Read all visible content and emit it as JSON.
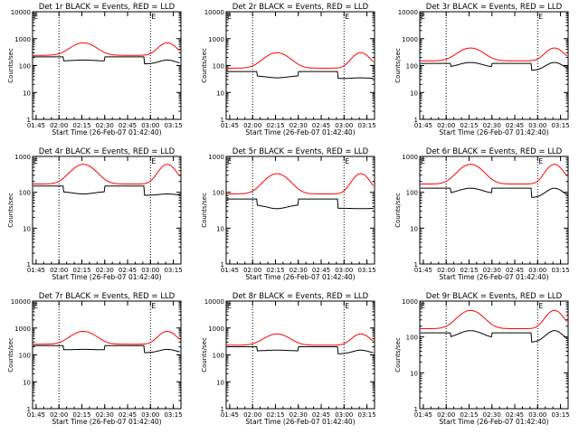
{
  "colors": {
    "background": "#ffffff",
    "events": "#000000",
    "lld": "#ff0000",
    "axis": "#000000"
  },
  "chart_data": [
    {
      "type": "line",
      "title": "Det 1r BLACK = Events, RED = LLD",
      "xlabel": "Start Time (26-Feb-07 01:42:40)",
      "ylabel": "Counts/sec",
      "x_ticks": [
        "01:45",
        "02:00",
        "02:15",
        "02:30",
        "02:45",
        "03:00",
        "03:15"
      ],
      "y_ticks": [
        "1",
        "10",
        "100",
        "1000",
        "10000"
      ],
      "ylim": [
        1,
        10000
      ],
      "xlim_minutes": [
        102.67,
        200
      ],
      "gridlines_minutes": [
        120,
        180
      ],
      "marker": "E",
      "series": [
        {
          "name": "Events",
          "color": "#000000",
          "base": 210,
          "peak": 160
        },
        {
          "name": "LLD",
          "color": "#ff0000",
          "base": 240,
          "peak": 700
        }
      ]
    },
    {
      "type": "line",
      "title": "Det 2r BLACK = Events, RED = LLD",
      "xlabel": "Start Time (26-Feb-07 01:42:40)",
      "ylabel": "Counts/sec",
      "x_ticks": [
        "01:45",
        "02:00",
        "02:15",
        "02:30",
        "02:45",
        "03:00",
        "03:15"
      ],
      "y_ticks": [
        "1",
        "10",
        "100",
        "1000",
        "10000"
      ],
      "ylim": [
        1,
        10000
      ],
      "xlim_minutes": [
        102.67,
        200
      ],
      "gridlines_minutes": [
        120,
        180
      ],
      "marker": "E",
      "series": [
        {
          "name": "Events",
          "color": "#000000",
          "base": 60,
          "peak": 35
        },
        {
          "name": "LLD",
          "color": "#ff0000",
          "base": 80,
          "peak": 300
        }
      ]
    },
    {
      "type": "line",
      "title": "Det 3r BLACK = Events, RED = LLD",
      "xlabel": "Start Time (26-Feb-07 01:42:40)",
      "ylabel": "Counts/sec",
      "x_ticks": [
        "01:45",
        "02:00",
        "02:15",
        "02:30",
        "02:45",
        "03:00",
        "03:15"
      ],
      "y_ticks": [
        "1",
        "10",
        "100",
        "1000",
        "10000"
      ],
      "ylim": [
        1,
        10000
      ],
      "xlim_minutes": [
        102.67,
        200
      ],
      "gridlines_minutes": [
        120,
        180
      ],
      "marker": "E",
      "series": [
        {
          "name": "Events",
          "color": "#000000",
          "base": 120,
          "peak": 130
        },
        {
          "name": "LLD",
          "color": "#ff0000",
          "base": 150,
          "peak": 450
        }
      ]
    },
    {
      "type": "line",
      "title": "Det 4r BLACK = Events, RED = LLD",
      "xlabel": "Start Time (26-Feb-07 01:42:40)",
      "ylabel": "Counts/sec",
      "x_ticks": [
        "01:45",
        "02:00",
        "02:15",
        "02:30",
        "02:45",
        "03:00",
        "03:15"
      ],
      "y_ticks": [
        "1",
        "10",
        "100",
        "1000"
      ],
      "ylim": [
        1,
        1000
      ],
      "xlim_minutes": [
        102.67,
        200
      ],
      "gridlines_minutes": [
        120,
        180
      ],
      "marker": "E",
      "series": [
        {
          "name": "Events",
          "color": "#000000",
          "base": 150,
          "peak": 90
        },
        {
          "name": "LLD",
          "color": "#ff0000",
          "base": 170,
          "peak": 600
        }
      ]
    },
    {
      "type": "line",
      "title": "Det 5r BLACK = Events, RED = LLD",
      "xlabel": "Start Time (26-Feb-07 01:42:40)",
      "ylabel": "Counts/sec",
      "x_ticks": [
        "01:45",
        "02:00",
        "02:15",
        "02:30",
        "02:45",
        "03:00",
        "03:15"
      ],
      "y_ticks": [
        "1",
        "10",
        "100",
        "1000"
      ],
      "ylim": [
        1,
        1000
      ],
      "xlim_minutes": [
        102.67,
        200
      ],
      "gridlines_minutes": [
        120,
        180
      ],
      "marker": "E",
      "series": [
        {
          "name": "Events",
          "color": "#000000",
          "base": 65,
          "peak": 35
        },
        {
          "name": "LLD",
          "color": "#ff0000",
          "base": 90,
          "peak": 330
        }
      ]
    },
    {
      "type": "line",
      "title": "Det 6r BLACK = Events, RED = LLD",
      "xlabel": "Start Time (26-Feb-07 01:42:40)",
      "ylabel": "Counts/sec",
      "x_ticks": [
        "01:45",
        "02:00",
        "02:15",
        "02:30",
        "02:45",
        "03:00",
        "03:15"
      ],
      "y_ticks": [
        "1",
        "10",
        "100",
        "1000"
      ],
      "ylim": [
        1,
        1000
      ],
      "xlim_minutes": [
        102.67,
        200
      ],
      "gridlines_minutes": [
        120,
        180
      ],
      "marker": "E",
      "series": [
        {
          "name": "Events",
          "color": "#000000",
          "base": 130,
          "peak": 130
        },
        {
          "name": "LLD",
          "color": "#ff0000",
          "base": 170,
          "peak": 600
        }
      ]
    },
    {
      "type": "line",
      "title": "Det 7r BLACK = Events, RED = LLD",
      "xlabel": "Start Time (26-Feb-07 01:42:40)",
      "ylabel": "Counts/sec",
      "x_ticks": [
        "01:45",
        "02:00",
        "02:15",
        "02:30",
        "02:45",
        "03:00",
        "03:15"
      ],
      "y_ticks": [
        "1",
        "10",
        "100",
        "1000",
        "10000"
      ],
      "ylim": [
        1,
        10000
      ],
      "xlim_minutes": [
        102.67,
        200
      ],
      "gridlines_minutes": [
        120,
        180
      ],
      "marker": "E",
      "series": [
        {
          "name": "Events",
          "color": "#000000",
          "base": 220,
          "peak": 160
        },
        {
          "name": "LLD",
          "color": "#ff0000",
          "base": 250,
          "peak": 750
        }
      ]
    },
    {
      "type": "line",
      "title": "Det 8r BLACK = Events, RED = LLD",
      "xlabel": "Start Time (26-Feb-07 01:42:40)",
      "ylabel": "Counts/sec",
      "x_ticks": [
        "01:45",
        "02:00",
        "02:15",
        "02:30",
        "02:45",
        "03:00",
        "03:15"
      ],
      "y_ticks": [
        "1",
        "10",
        "100",
        "1000",
        "10000"
      ],
      "ylim": [
        1,
        10000
      ],
      "xlim_minutes": [
        102.67,
        200
      ],
      "gridlines_minutes": [
        120,
        180
      ],
      "marker": "E",
      "series": [
        {
          "name": "Events",
          "color": "#000000",
          "base": 200,
          "peak": 150
        },
        {
          "name": "LLD",
          "color": "#ff0000",
          "base": 230,
          "peak": 600
        }
      ]
    },
    {
      "type": "line",
      "title": "Det 9r BLACK = Events, RED = LLD",
      "xlabel": "Start Time (26-Feb-07 01:42:40)",
      "ylabel": "Counts/sec",
      "x_ticks": [
        "01:45",
        "02:00",
        "02:15",
        "02:30",
        "02:45",
        "03:00",
        "03:15"
      ],
      "y_ticks": [
        "1",
        "10",
        "100",
        "1000"
      ],
      "ylim": [
        1,
        1000
      ],
      "xlim_minutes": [
        102.67,
        200
      ],
      "gridlines_minutes": [
        120,
        180
      ],
      "marker": "E",
      "series": [
        {
          "name": "Events",
          "color": "#000000",
          "base": 130,
          "peak": 150
        },
        {
          "name": "LLD",
          "color": "#ff0000",
          "base": 170,
          "peak": 550
        }
      ]
    }
  ]
}
